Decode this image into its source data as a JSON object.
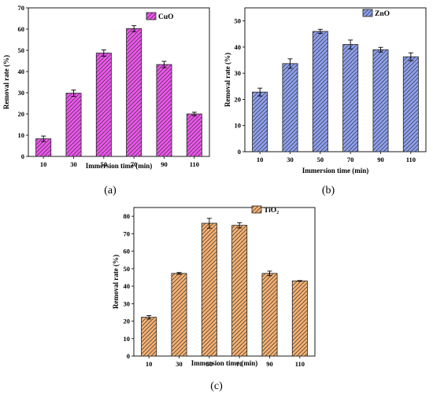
{
  "chart_data": [
    {
      "type": "bar",
      "panel_label": "(a)",
      "categories": [
        "10",
        "30",
        "50",
        "70",
        "90",
        "110"
      ],
      "series": [
        {
          "name": "CuO",
          "values": [
            8.3,
            29.8,
            48.7,
            60.2,
            43.3,
            20.0
          ],
          "errors": [
            1.3,
            1.5,
            1.5,
            1.4,
            1.5,
            0.8
          ]
        }
      ],
      "xlabel": "Immersion time (min)",
      "ylabel": "Removal rate (%)",
      "ylim": [
        0,
        70
      ],
      "yticks": [
        0,
        10,
        20,
        30,
        40,
        50,
        60,
        70
      ],
      "fill_color": "#ee55ee",
      "hatch": "diagonal",
      "legend": "top-right"
    },
    {
      "type": "bar",
      "panel_label": "(b)",
      "categories": [
        "10",
        "30",
        "50",
        "70",
        "90",
        "110"
      ],
      "series": [
        {
          "name": "ZnO",
          "values": [
            22.8,
            33.7,
            46.0,
            41.0,
            39.0,
            36.3
          ],
          "errors": [
            1.5,
            1.8,
            0.8,
            1.7,
            0.9,
            1.5
          ]
        }
      ],
      "xlabel": "Immersion time (min)",
      "ylabel": "Removal rate (%)",
      "ylim": [
        0,
        55
      ],
      "yticks": [
        0,
        10,
        20,
        30,
        40,
        50
      ],
      "fill_color": "#8ea0f0",
      "hatch": "diagonal",
      "legend": "top-right"
    },
    {
      "type": "bar",
      "panel_label": "(c)",
      "categories": [
        "10",
        "30",
        "50",
        "70",
        "90",
        "110"
      ],
      "series": [
        {
          "name": "TiO₂",
          "values": [
            22.2,
            47.3,
            76.0,
            74.8,
            47.3,
            43.0
          ],
          "errors": [
            1.0,
            0.5,
            2.8,
            1.5,
            1.3,
            0.2
          ]
        }
      ],
      "xlabel": "Immersion time (min)",
      "ylabel": "Removal rate (%)",
      "ylim": [
        0,
        85
      ],
      "yticks": [
        0,
        10,
        20,
        30,
        40,
        50,
        60,
        70,
        80
      ],
      "fill_color": "#f5b070",
      "hatch": "diagonal",
      "legend": "top-right"
    }
  ]
}
